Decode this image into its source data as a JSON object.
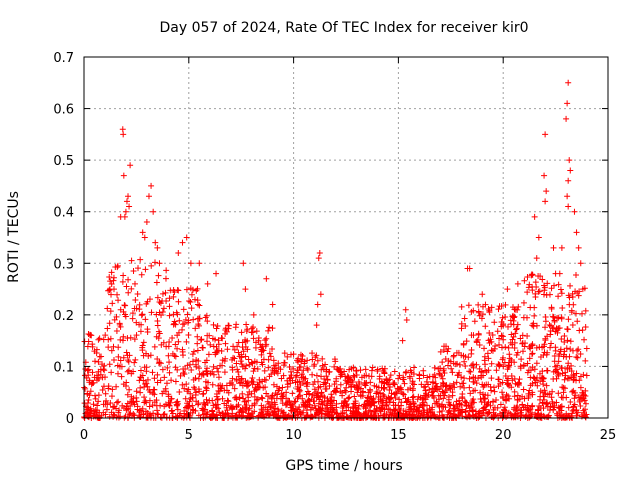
{
  "chart_data": {
    "type": "scatter",
    "title": "Day 057 of 2024, Rate Of TEC Index for receiver kir0",
    "xlabel": "GPS time / hours",
    "ylabel": "ROTI / TECUs",
    "xlim": [
      0,
      25
    ],
    "ylim": [
      0,
      0.7
    ],
    "xticks": [
      "0",
      "5",
      "10",
      "15",
      "20",
      "25"
    ],
    "yticks": [
      "0",
      "0.1",
      "0.2",
      "0.3",
      "0.4",
      "0.5",
      "0.6",
      "0.7"
    ],
    "grid": true,
    "marker": "+",
    "series_color": "#ff0000",
    "series": [
      {
        "name": "ROTI",
        "points": [
          [
            1.85,
            0.56
          ],
          [
            1.87,
            0.55
          ],
          [
            2.2,
            0.49
          ],
          [
            1.9,
            0.47
          ],
          [
            2.1,
            0.43
          ],
          [
            2.05,
            0.42
          ],
          [
            2.15,
            0.41
          ],
          [
            1.75,
            0.39
          ],
          [
            1.95,
            0.39
          ],
          [
            2.0,
            0.4
          ],
          [
            3.2,
            0.45
          ],
          [
            3.1,
            0.43
          ],
          [
            3.3,
            0.4
          ],
          [
            3.0,
            0.38
          ],
          [
            2.8,
            0.36
          ],
          [
            2.9,
            0.35
          ],
          [
            3.4,
            0.34
          ],
          [
            3.5,
            0.33
          ],
          [
            3.6,
            0.3
          ],
          [
            4.7,
            0.34
          ],
          [
            4.9,
            0.35
          ],
          [
            4.5,
            0.32
          ],
          [
            5.1,
            0.3
          ],
          [
            5.5,
            0.3
          ],
          [
            5.9,
            0.26
          ],
          [
            6.3,
            0.28
          ],
          [
            7.6,
            0.3
          ],
          [
            7.7,
            0.25
          ],
          [
            8.7,
            0.27
          ],
          [
            9.0,
            0.22
          ],
          [
            8.1,
            0.2
          ],
          [
            11.25,
            0.32
          ],
          [
            11.2,
            0.31
          ],
          [
            11.3,
            0.24
          ],
          [
            11.15,
            0.22
          ],
          [
            11.1,
            0.18
          ],
          [
            15.35,
            0.21
          ],
          [
            15.4,
            0.19
          ],
          [
            15.2,
            0.15
          ],
          [
            18.4,
            0.29
          ],
          [
            18.3,
            0.29
          ],
          [
            19.0,
            0.24
          ],
          [
            20.2,
            0.25
          ],
          [
            20.7,
            0.26
          ],
          [
            20.6,
            0.21
          ],
          [
            21.5,
            0.39
          ],
          [
            21.7,
            0.35
          ],
          [
            21.6,
            0.31
          ],
          [
            22.0,
            0.55
          ],
          [
            21.95,
            0.47
          ],
          [
            22.05,
            0.44
          ],
          [
            22.0,
            0.42
          ],
          [
            22.4,
            0.33
          ],
          [
            22.5,
            0.28
          ],
          [
            23.1,
            0.65
          ],
          [
            23.05,
            0.61
          ],
          [
            23.0,
            0.58
          ],
          [
            23.15,
            0.5
          ],
          [
            23.2,
            0.48
          ],
          [
            23.1,
            0.46
          ],
          [
            23.05,
            0.43
          ],
          [
            23.1,
            0.41
          ],
          [
            23.4,
            0.4
          ],
          [
            23.5,
            0.36
          ],
          [
            23.6,
            0.33
          ],
          [
            23.7,
            0.3
          ],
          [
            23.8,
            0.25
          ],
          [
            22.8,
            0.33
          ],
          [
            22.7,
            0.28
          ]
        ]
      }
    ]
  }
}
